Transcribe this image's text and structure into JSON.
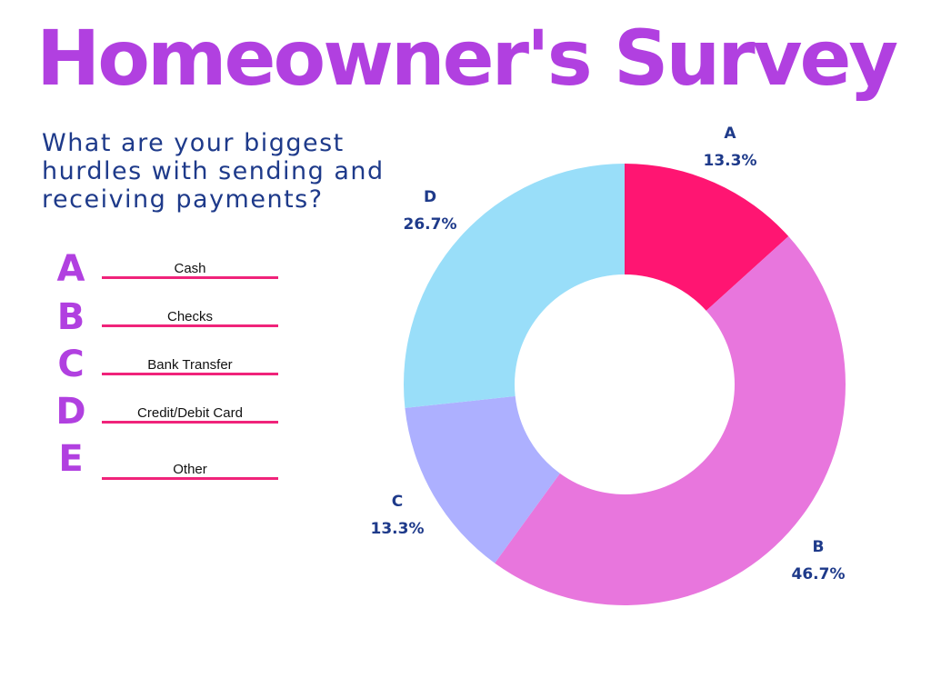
{
  "title": "Homeowner's Survey",
  "question": "What are your biggest hurdles with sending and receiving payments?",
  "legend": [
    {
      "letter": "A",
      "text": "Cash"
    },
    {
      "letter": "B",
      "text": "Checks"
    },
    {
      "letter": "C",
      "text": "Bank Transfer"
    },
    {
      "letter": "D",
      "text": "Credit/Debit Card"
    },
    {
      "letter": "E",
      "text": "Other"
    }
  ],
  "colors": {
    "title": "#b140e0",
    "question": "#1e3a8a",
    "legend_line": "#f0237a",
    "label": "#1e3a8a"
  },
  "chart_data": {
    "type": "pie",
    "donut": true,
    "categories": [
      "A",
      "B",
      "C",
      "D"
    ],
    "values": [
      13.3,
      46.7,
      13.3,
      26.7
    ],
    "value_labels": [
      "13.3%",
      "46.7%",
      "13.3%",
      "26.7%"
    ],
    "colors": [
      "#ff1572",
      "#e876dd",
      "#adb0ff",
      "#99def9"
    ],
    "start": "12 o'clock",
    "direction": "clockwise"
  }
}
